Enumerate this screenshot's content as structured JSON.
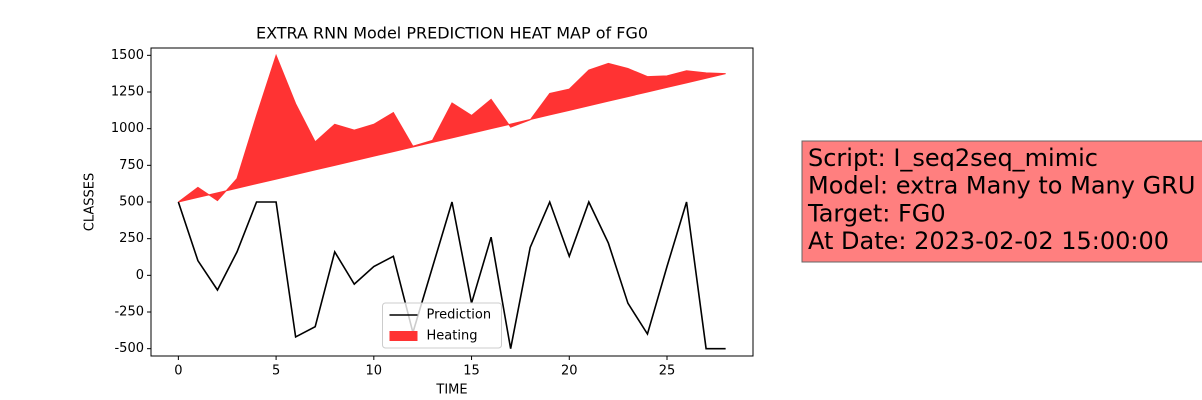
{
  "chart_data": {
    "type": "line",
    "title": "EXTRA RNN Model PREDICTION HEAT MAP of FG0",
    "xlabel": "TIME",
    "ylabel": "CLASSES",
    "x": [
      0,
      1,
      2,
      3,
      4,
      5,
      6,
      7,
      8,
      9,
      10,
      11,
      12,
      13,
      14,
      15,
      16,
      17,
      18,
      19,
      20,
      21,
      22,
      23,
      24,
      25,
      26,
      27,
      28
    ],
    "series": [
      {
        "name": "Prediction",
        "color": "#000000",
        "kind": "line",
        "values": [
          500,
          100,
          -100,
          160,
          500,
          500,
          -420,
          -350,
          160,
          -60,
          60,
          130,
          -390,
          55,
          500,
          -190,
          260,
          -500,
          190,
          500,
          130,
          500,
          220,
          -190,
          -400,
          60,
          500,
          -500,
          -500
        ]
      },
      {
        "name": "Heating",
        "color": "#ff3333",
        "kind": "area",
        "values": [
          500,
          600,
          510,
          660,
          1090,
          1500,
          1170,
          910,
          1030,
          990,
          1030,
          1110,
          880,
          920,
          1175,
          1090,
          1200,
          1010,
          1060,
          1240,
          1270,
          1400,
          1445,
          1410,
          1355,
          1360,
          1395,
          1380,
          1375
        ],
        "lower": [
          500,
          531.25,
          562.5,
          593.75,
          625,
          656.25,
          687.5,
          718.75,
          750,
          781.25,
          812.5,
          843.75,
          875,
          906.25,
          937.5,
          968.75,
          1000,
          1031.25,
          1062.5,
          1093.75,
          1125,
          1156.25,
          1187.5,
          1218.75,
          1250,
          1281.25,
          1312.5,
          1343.75,
          1375
        ]
      }
    ],
    "xlim": [
      -1.4,
      29.4
    ],
    "ylim": [
      -550,
      1550
    ],
    "xticks": [
      0,
      5,
      10,
      15,
      20,
      25
    ],
    "yticks": [
      -500,
      -250,
      0,
      250,
      500,
      750,
      1000,
      1250,
      1500
    ],
    "legend": "lower center",
    "annotation": [
      "Script: I_seq2seq_mimic",
      "Model: extra Many to Many GRU",
      "Target: FG0",
      "At Date: 2023-02-02 15:00:00"
    ],
    "annotation_color": "#ff7f7f"
  }
}
